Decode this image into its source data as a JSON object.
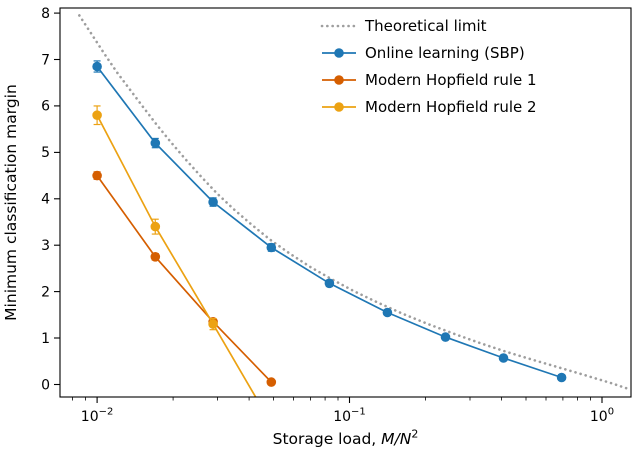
{
  "figure": {
    "background": "#ffffff"
  },
  "chart_data": {
    "type": "line",
    "title": "",
    "x_scale": "log",
    "xlabel": {
      "prefix": "Storage load, ",
      "math": "M/N",
      "superscript": "2"
    },
    "ylabel": "Minimum classification margin",
    "xlim": [
      0.00713,
      1.303
    ],
    "ylim": [
      -0.27,
      8.11
    ],
    "x_ticks": [
      {
        "value": 0.01,
        "base": "10",
        "exponent": "−2"
      },
      {
        "value": 0.1,
        "base": "10",
        "exponent": "−1"
      },
      {
        "value": 1.0,
        "base": "10",
        "exponent": "0"
      }
    ],
    "y_ticks": [
      0,
      1,
      2,
      3,
      4,
      5,
      6,
      7,
      8
    ],
    "grid": false,
    "legend_position": "upper-right",
    "axis_color": "#000000",
    "series": [
      {
        "name": "Theoretical limit",
        "color": "#9e9e9e",
        "line_style": "dotted",
        "marker": false,
        "x": [
          0.0085,
          0.0095,
          0.0107,
          0.012,
          0.0135,
          0.0152,
          0.0172,
          0.0196,
          0.0224,
          0.0258,
          0.0298,
          0.0347,
          0.0408,
          0.0484,
          0.058,
          0.07,
          0.0855,
          0.105,
          0.13,
          0.163,
          0.205,
          0.26,
          0.33,
          0.42,
          0.54,
          0.69,
          0.88,
          1.1,
          1.28
        ],
        "y": [
          7.95,
          7.55,
          7.12,
          6.72,
          6.35,
          5.98,
          5.6,
          5.22,
          4.85,
          4.48,
          4.12,
          3.78,
          3.45,
          3.12,
          2.82,
          2.53,
          2.26,
          2.0,
          1.76,
          1.52,
          1.3,
          1.09,
          0.89,
          0.7,
          0.52,
          0.35,
          0.18,
          0.02,
          -0.1
        ]
      },
      {
        "name": "Online learning (SBP)",
        "color": "#1f77b4",
        "line_style": "solid",
        "marker": true,
        "x": [
          0.01,
          0.017,
          0.0288,
          0.049,
          0.0832,
          0.1413,
          0.2399,
          0.4074,
          0.6918
        ],
        "y": [
          6.85,
          5.2,
          3.93,
          2.95,
          2.18,
          1.55,
          1.02,
          0.57,
          0.15
        ],
        "yerr": [
          0.12,
          0.1,
          0.09,
          0.08,
          0.07,
          0.06,
          0.06,
          0.06,
          0.06
        ]
      },
      {
        "name": "Modern Hopfield rule 1",
        "color": "#d55e00",
        "line_style": "solid",
        "marker": true,
        "x": [
          0.01,
          0.017,
          0.0288,
          0.049
        ],
        "y": [
          4.5,
          2.75,
          1.35,
          0.05
        ],
        "yerr": [
          0.08,
          0.07,
          0.06,
          0.05
        ]
      },
      {
        "name": "Modern Hopfield rule 2",
        "color": "#eca213",
        "line_style": "solid",
        "marker": true,
        "x": [
          0.01,
          0.017,
          0.0288,
          0.049
        ],
        "y": [
          5.8,
          3.4,
          1.3,
          -0.85
        ],
        "yerr": [
          0.2,
          0.16,
          0.12,
          0
        ]
      }
    ]
  }
}
